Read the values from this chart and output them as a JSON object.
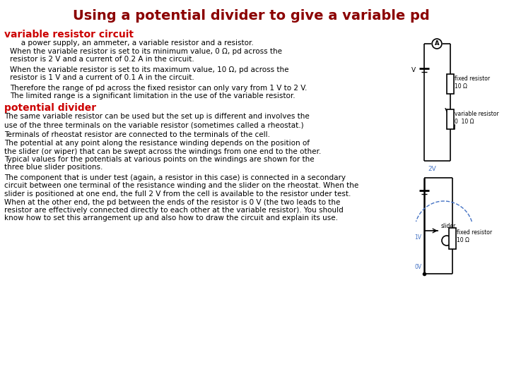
{
  "title": "Using a potential divider to give a variable pd",
  "title_color": "#8B0000",
  "title_fontsize": 14,
  "background_color": "#FFFFFF",
  "section1_heading": "variable resistor circuit",
  "section1_heading_color": "#CC0000",
  "section1_heading_fontsize": 10,
  "section2_heading": "potential divider",
  "section2_heading_color": "#CC0000",
  "section2_heading_fontsize": 10,
  "para1_indent": "   a power supply, an ammeter, a variable resistor and a resistor.",
  "para2_line1": "When the variable resistor is set to its minimum value, 0 Ω, pd across the",
  "para2_line2": "resistor is 2 V and a current of 0.2 A in the circuit.",
  "para3_line1": "When the variable resistor is set to its maximum value, 10 Ω, pd across the",
  "para3_line2": "resistor is 1 V and a current of 0.1 A in the circuit.",
  "para4": "Therefore the range of pd across the fixed resistor can only vary from 1 V to 2 V.",
  "para5": "The limited range is a significant limitation in the use of the variable resistor.",
  "para6_line1": "The same variable resistor can be used but the set up is different and involves the",
  "para6_line2": "use of the three terminals on the variable resistor (sometimes called a rheostat.)",
  "para7_line1": "Terminals of rheostat resistor are connected to the terminals of the cell.",
  "para7_line2": "The potential at any point along the resistance winding depends on the position of",
  "para7_line3": "the slider (or wiper) that can be swept across the windings from one end to the other.",
  "para7_line4": "Typical values for the potentials at various points on the windings are shown for the",
  "para7_line5": "three blue slider positions.",
  "para8_line1": "The component that is under test (again, a resistor in this case) is connected in a secondary",
  "para8_line2": "circuit between one terminal of the resistance winding and the slider on the rheostat. When the",
  "para8_line3": "slider is positioned at one end, the full 2 V from the cell is available to the resistor under test.",
  "para8_line4": "When at the other end, the pd between the ends of the resistor is 0 V (the two leads to the",
  "para8_line5": "resistor are effectively connected directly to each other at the variable resistor). You should",
  "para8_line6": "know how to set this arrangement up and also how to draw the circuit and explain its use.",
  "text_color": "#000000",
  "text_fontsize": 7.5
}
